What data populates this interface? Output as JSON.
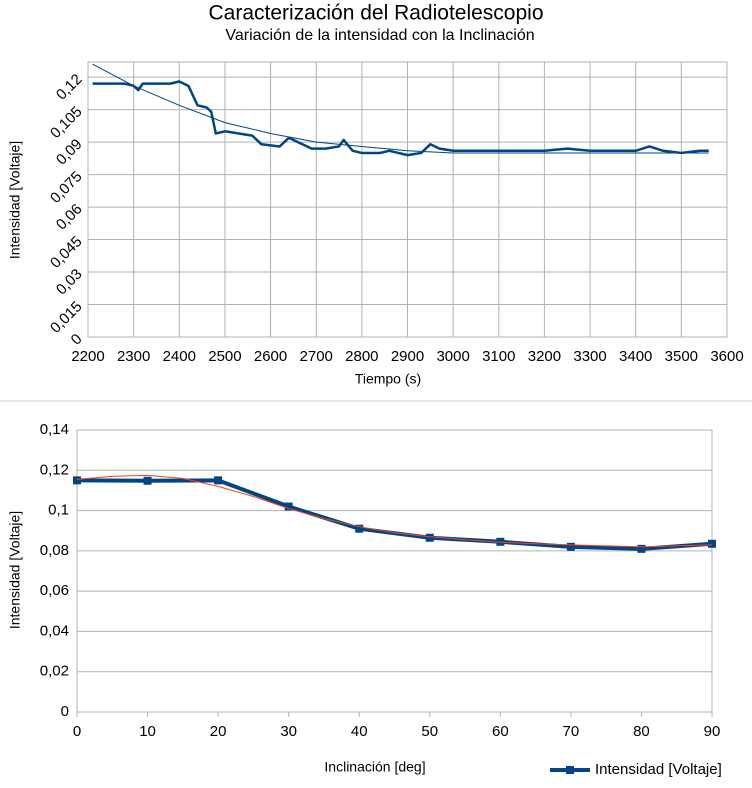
{
  "chart_data": [
    {
      "type": "line",
      "title": "Caracterización del Radiotelescopio",
      "subtitle": "Variación de la intensidad con la Inclinación",
      "x_label": "Tiempo (s)",
      "y_label": "Intensidad [Voltaje]",
      "xlim": [
        2200,
        3600
      ],
      "xticks": [
        2200,
        2300,
        2400,
        2500,
        2600,
        2700,
        2800,
        2900,
        3000,
        3100,
        3200,
        3300,
        3400,
        3500,
        3600
      ],
      "ylim": [
        0,
        0.127
      ],
      "yticks": [
        0,
        {
          "value": 0.015,
          "label": "0,015"
        },
        {
          "value": 0.03,
          "label": "0,03"
        },
        {
          "value": 0.045,
          "label": "0,045"
        },
        {
          "value": 0.06,
          "label": "0,06"
        },
        {
          "value": 0.075,
          "label": "0,075"
        },
        {
          "value": 0.09,
          "label": "0,09"
        },
        {
          "value": 0.105,
          "label": "0,105"
        },
        {
          "value": 0.12,
          "label": "0,12"
        }
      ],
      "grid": "both",
      "series": [
        {
          "color": "#004586",
          "width": 2.5,
          "x": [
            2210,
            2250,
            2280,
            2300,
            2310,
            2320,
            2350,
            2380,
            2400,
            2420,
            2440,
            2460,
            2470,
            2480,
            2500,
            2530,
            2560,
            2580,
            2620,
            2640,
            2660,
            2690,
            2720,
            2750,
            2760,
            2780,
            2800,
            2840,
            2860,
            2880,
            2900,
            2930,
            2950,
            2970,
            3000,
            3050,
            3100,
            3150,
            3200,
            3250,
            3300,
            3350,
            3400,
            3430,
            3460,
            3500,
            3540,
            3560
          ],
          "values": [
            0.117,
            0.117,
            0.117,
            0.116,
            0.114,
            0.117,
            0.117,
            0.117,
            0.118,
            0.116,
            0.107,
            0.106,
            0.104,
            0.094,
            0.095,
            0.094,
            0.093,
            0.089,
            0.088,
            0.092,
            0.09,
            0.087,
            0.087,
            0.088,
            0.091,
            0.086,
            0.085,
            0.085,
            0.086,
            0.085,
            0.084,
            0.085,
            0.089,
            0.087,
            0.086,
            0.086,
            0.086,
            0.086,
            0.086,
            0.087,
            0.086,
            0.086,
            0.086,
            0.088,
            0.086,
            0.085,
            0.086,
            0.086
          ]
        },
        {
          "color": "#004586",
          "width": 1,
          "x": [
            2210,
            2300,
            2400,
            2500,
            2600,
            2700,
            2800,
            2900,
            3000,
            3100,
            3200,
            3300,
            3400,
            3500,
            3560
          ],
          "values": [
            0.126,
            0.116,
            0.107,
            0.099,
            0.094,
            0.09,
            0.088,
            0.086,
            0.085,
            0.085,
            0.085,
            0.085,
            0.085,
            0.085,
            0.085
          ]
        }
      ]
    },
    {
      "type": "line",
      "x_label": "Inclinación [deg]",
      "y_label": "Intensidad [Voltaje]",
      "xlim": [
        0,
        90
      ],
      "xticks": [
        0,
        10,
        20,
        30,
        40,
        50,
        60,
        70,
        80,
        90
      ],
      "ylim": [
        0,
        0.14
      ],
      "yticks": [
        0,
        {
          "value": 0.02,
          "label": "0,02"
        },
        {
          "value": 0.04,
          "label": "0,04"
        },
        {
          "value": 0.06,
          "label": "0,06"
        },
        {
          "value": 0.08,
          "label": "0,08"
        },
        {
          "value": 0.1,
          "label": "0,1"
        },
        {
          "value": 0.12,
          "label": "0,12"
        },
        {
          "value": 0.14,
          "label": "0,14"
        }
      ],
      "grid": "y",
      "legend": "bottom-right",
      "series": [
        {
          "name": "Intensidad [Voltaje]",
          "color": "#004586",
          "width": 4,
          "marker": "square",
          "x": [
            0,
            10,
            20,
            30,
            40,
            50,
            60,
            70,
            80,
            90
          ],
          "values": [
            0.115,
            0.1148,
            0.115,
            0.102,
            0.091,
            0.0865,
            0.0845,
            0.082,
            0.081,
            0.0835
          ]
        },
        {
          "color": "#ff420e",
          "width": 1,
          "x": [
            0,
            5,
            10,
            15,
            20,
            25,
            30,
            35,
            40,
            45,
            50,
            55,
            60,
            65,
            70,
            75,
            80,
            85,
            90
          ],
          "values": [
            0.1155,
            0.117,
            0.1175,
            0.116,
            0.112,
            0.107,
            0.101,
            0.096,
            0.092,
            0.089,
            0.087,
            0.0855,
            0.0843,
            0.0835,
            0.083,
            0.0825,
            0.082,
            0.0825,
            0.083
          ]
        }
      ]
    }
  ]
}
